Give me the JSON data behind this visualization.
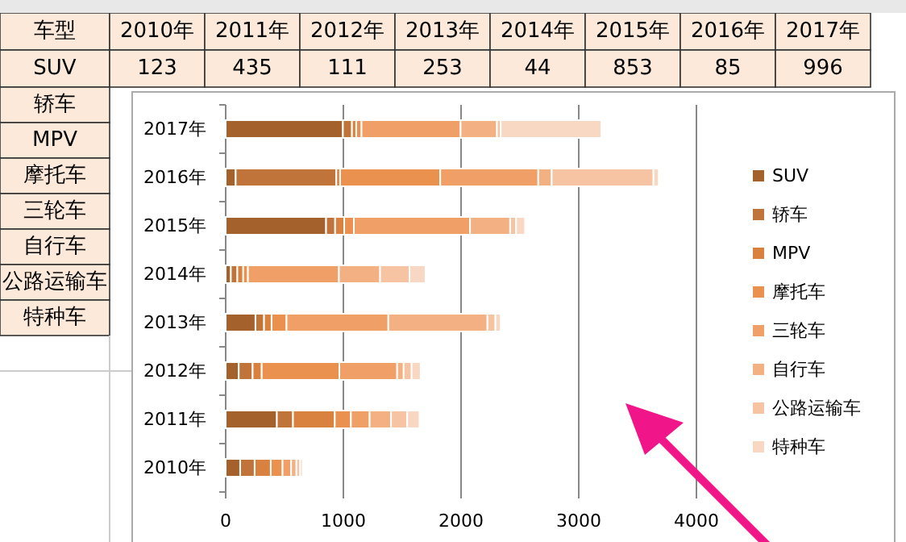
{
  "chart_data": {
    "type": "bar",
    "orientation": "horizontal",
    "stacked": true,
    "categories": [
      "2017年",
      "2016年",
      "2015年",
      "2014年",
      "2013年",
      "2012年",
      "2011年",
      "2010年"
    ],
    "series": [
      {
        "name": "SUV",
        "color": "#a5612c",
        "values": [
          996,
          85,
          853,
          44,
          253,
          111,
          435,
          123
        ]
      },
      {
        "name": "轿车",
        "color": "#c0743a",
        "values": [
          77,
          855,
          77,
          55,
          73,
          118,
          137,
          123
        ]
      },
      {
        "name": "MPV",
        "color": "#d9813f",
        "values": [
          36,
          32,
          77,
          50,
          64,
          77,
          355,
          137
        ]
      },
      {
        "name": "摩托车",
        "color": "#ea914f",
        "values": [
          45,
          851,
          82,
          40,
          127,
          660,
          137,
          100
        ]
      },
      {
        "name": "三轮车",
        "color": "#f09f66",
        "values": [
          842,
          833,
          987,
          773,
          865,
          491,
          159,
          73
        ]
      },
      {
        "name": "自行车",
        "color": "#f3b083",
        "values": [
          309,
          114,
          341,
          350,
          842,
          55,
          182,
          45
        ]
      },
      {
        "name": "公路运输车",
        "color": "#f6c4a2",
        "values": [
          32,
          865,
          50,
          250,
          68,
          68,
          137,
          32
        ]
      },
      {
        "name": "特种车",
        "color": "#f9d8c3",
        "values": [
          855,
          45,
          77,
          136,
          45,
          77,
          105,
          22
        ]
      }
    ],
    "xlim": [
      0,
      4000
    ],
    "xticks": [
      0,
      1000,
      2000,
      3000,
      4000
    ],
    "grid": "x",
    "legend": "right",
    "annotations": [
      "车型",
      "2010年",
      "2011年",
      "2012年",
      "2013年",
      "2014年",
      "2015年",
      "2016年",
      "2017年",
      "SUV",
      "123",
      "435",
      "111",
      "253",
      "44",
      "853",
      "85",
      "996",
      "轿车",
      "MPV",
      "摩托车",
      "三轮车",
      "自行车",
      "公路运输车",
      "特种车"
    ]
  }
}
